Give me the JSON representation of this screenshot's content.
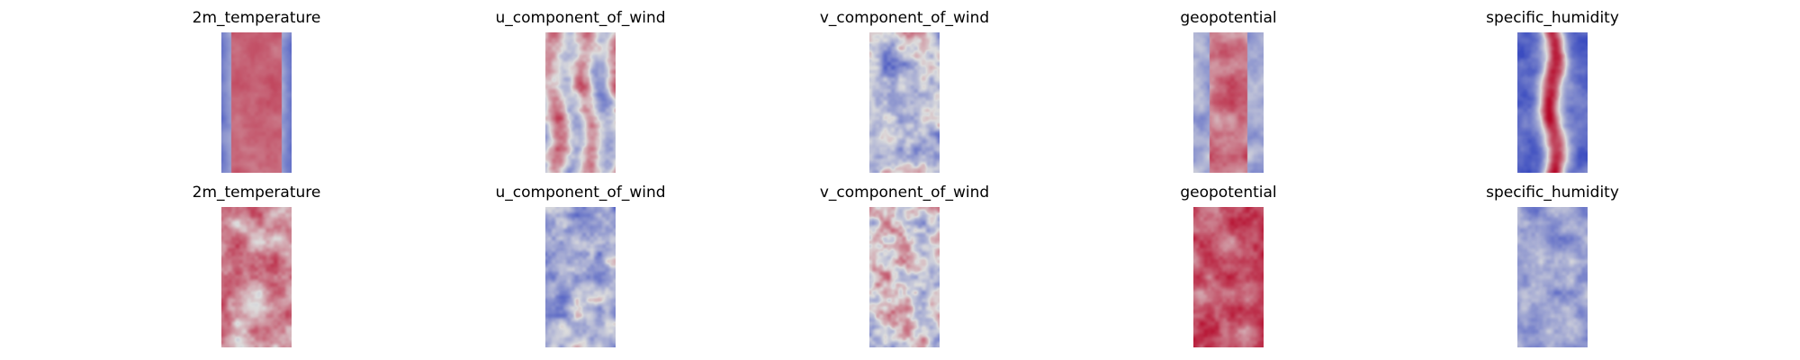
{
  "figure": {
    "rows": [
      {
        "panels": [
          {
            "title": "2m_temperature",
            "style": "warm_center"
          },
          {
            "title": "u_component_of_wind",
            "style": "bands"
          },
          {
            "title": "v_component_of_wind",
            "style": "neutral_noise"
          },
          {
            "title": "geopotential",
            "style": "warm_center_blue_sides"
          },
          {
            "title": "specific_humidity",
            "style": "hot_core_dark_blue"
          }
        ]
      },
      {
        "panels": [
          {
            "title": "2m_temperature",
            "style": "warm_noise"
          },
          {
            "title": "u_component_of_wind",
            "style": "cool_noise"
          },
          {
            "title": "v_component_of_wind",
            "style": "mixed_noise"
          },
          {
            "title": "geopotential",
            "style": "warm_strong"
          },
          {
            "title": "specific_humidity",
            "style": "cool_blue"
          }
        ]
      }
    ],
    "colormap": "coolwarm",
    "colors": {
      "cold": "#3b4cc0",
      "neutral": "#dddddd",
      "hot": "#b40426"
    }
  }
}
